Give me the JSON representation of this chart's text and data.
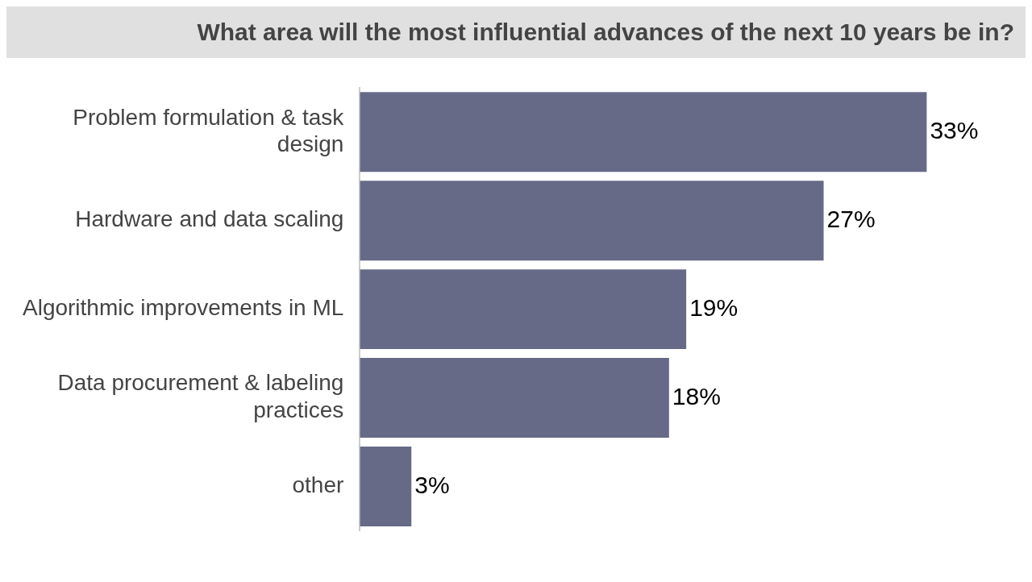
{
  "chart_data": {
    "type": "bar",
    "orientation": "horizontal",
    "title": "What area will the most influential advances of the next 10 years be in?",
    "categories": [
      "Problem formulation & task design",
      "Hardware and data scaling",
      "Algorithmic improvements in ML",
      "Data procurement & labeling practices",
      "other"
    ],
    "values": [
      33,
      27,
      19,
      18,
      3
    ],
    "value_labels": [
      "33%",
      "27%",
      "19%",
      "18%",
      "3%"
    ],
    "color": "#666a87"
  }
}
